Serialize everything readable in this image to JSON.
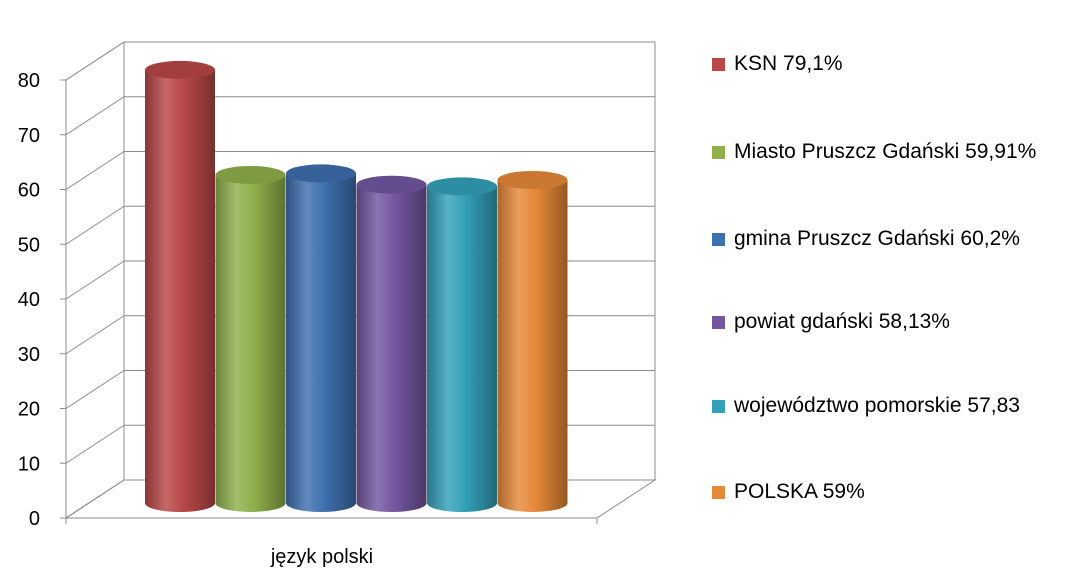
{
  "chart_data": {
    "type": "bar",
    "categories": [
      "język polski"
    ],
    "series": [
      {
        "name": "KSN 79,1%",
        "value": 79.1,
        "color": "#b94747"
      },
      {
        "name": "Miasto Pruszcz Gdański 59,91%",
        "value": 59.91,
        "color": "#8fb04b"
      },
      {
        "name": "gmina Pruszcz Gdański 60,2%",
        "value": 60.2,
        "color": "#3e6fae"
      },
      {
        "name": "powiat gdański 58,13%",
        "value": 58.13,
        "color": "#7356a0"
      },
      {
        "name": "województwo pomorskie 57,83",
        "value": 57.83,
        "color": "#33a0b8"
      },
      {
        "name": "POLSKA 59%",
        "value": 59,
        "color": "#e58838"
      }
    ],
    "yticks": [
      "0",
      "10",
      "20",
      "30",
      "40",
      "50",
      "60",
      "70",
      "80"
    ],
    "ylim": [
      0,
      80
    ],
    "grid": true,
    "legend_position": "right",
    "style": "3d-cylinder"
  }
}
